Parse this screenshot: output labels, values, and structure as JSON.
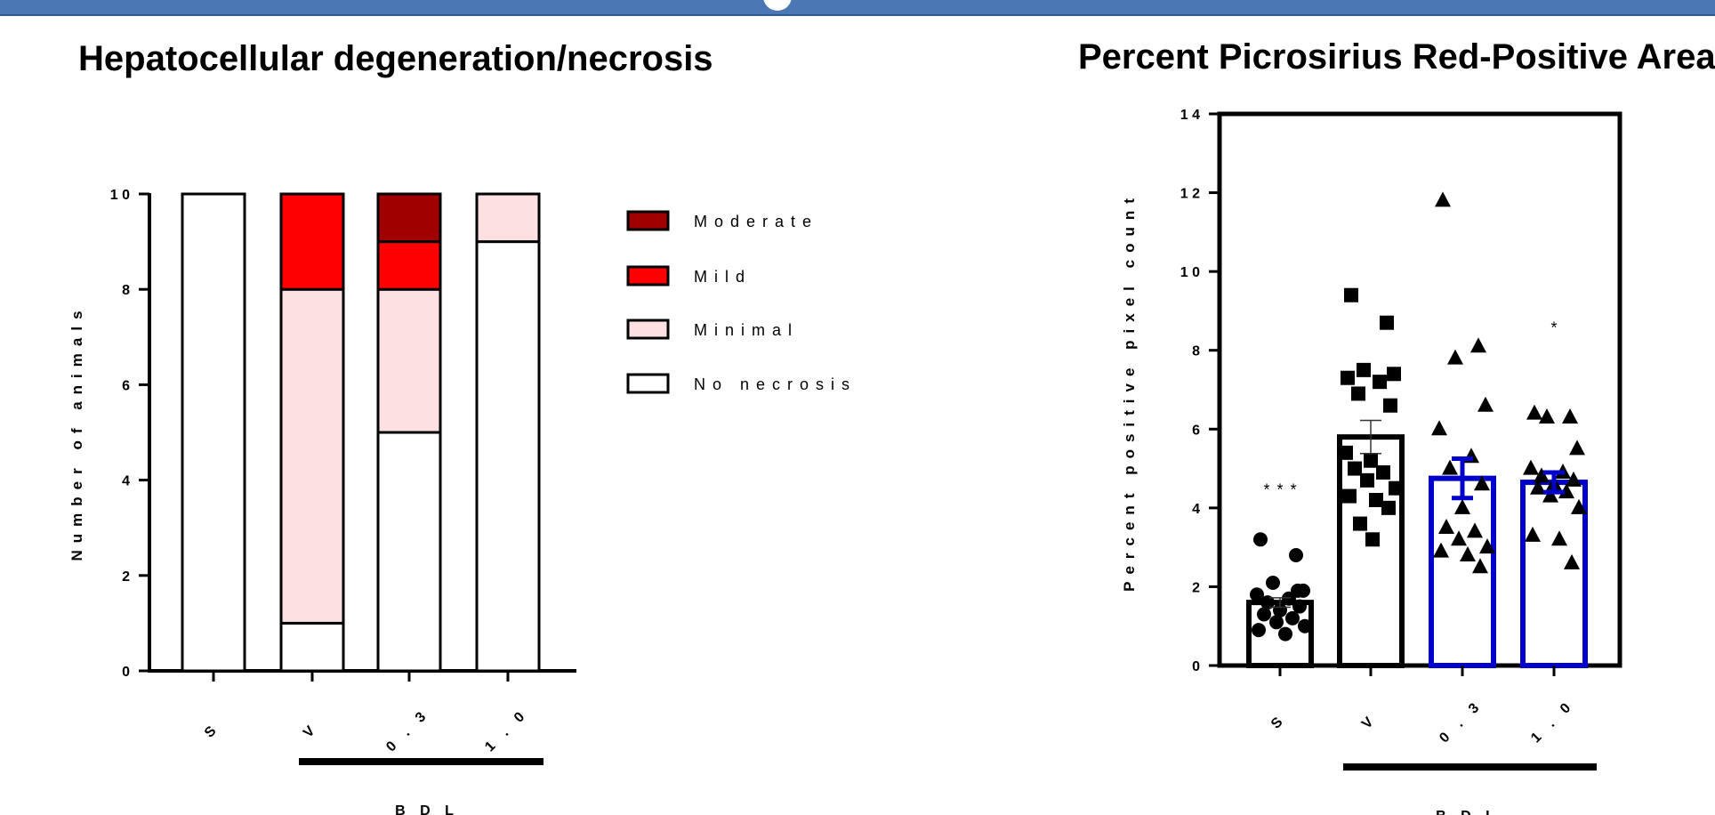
{
  "header": {
    "bar_color": "#4a78b5"
  },
  "chart_data": [
    {
      "type": "bar",
      "stacked": true,
      "title": "Hepatocellular degeneration/necrosis",
      "ylabel": "Number of animals",
      "xlabel": "BDL",
      "ylim": [
        0,
        10
      ],
      "yticks": [
        "0",
        "2",
        "4",
        "6",
        "8",
        "10"
      ],
      "categories": [
        "S",
        "V",
        "0.3",
        "1.0"
      ],
      "group_label": "BDL",
      "series": [
        {
          "name": "No necrosis",
          "color": "#ffffff",
          "values": [
            10,
            1,
            5,
            9
          ]
        },
        {
          "name": "Minimal",
          "color": "#fde0e2",
          "values": [
            0,
            7,
            3,
            1
          ]
        },
        {
          "name": "Mild",
          "color": "#ff0000",
          "values": [
            0,
            2,
            1,
            0
          ]
        },
        {
          "name": "Moderate",
          "color": "#a00000",
          "values": [
            0,
            0,
            1,
            0
          ]
        }
      ],
      "legend": {
        "placement": "right",
        "entries": [
          "Moderate",
          "Mild",
          "Minimal",
          "No necrosis"
        ]
      }
    },
    {
      "type": "bar",
      "title": "Percent Picrosirius Red-Positive Area",
      "ylabel": "Percent positive pixel count",
      "xlabel": "BDL",
      "ylim": [
        0,
        14
      ],
      "yticks": [
        "0",
        "2",
        "4",
        "6",
        "8",
        "10",
        "12",
        "14"
      ],
      "categories": [
        "S",
        "V",
        "0.3",
        "1.0"
      ],
      "group_label": "BDL",
      "series": [
        {
          "values": [
            1.6,
            5.8,
            4.75,
            4.65
          ],
          "errors": [
            0.12,
            0.42,
            0.5,
            0.25
          ],
          "bar_colors": [
            "#000000",
            "#000000",
            "#0000cc",
            "#0000cc"
          ],
          "markers": [
            "circle",
            "square",
            "triangle",
            "triangle"
          ],
          "points": [
            [
              3.2,
              2.8,
              2.1,
              1.9,
              1.8,
              1.7,
              1.6,
              1.5,
              1.4,
              1.3,
              1.2,
              1.1,
              1.0,
              0.9,
              0.8,
              1.9
            ],
            [
              9.4,
              8.7,
              7.5,
              7.4,
              7.3,
              7.2,
              6.9,
              6.6,
              5.2,
              5.0,
              4.9,
              4.7,
              4.5,
              4.3,
              4.2,
              4.0,
              3.6,
              3.2,
              5.4
            ],
            [
              11.8,
              8.1,
              7.8,
              6.6,
              6.0,
              5.3,
              5.0,
              4.6,
              4.0,
              3.5,
              3.4,
              3.2,
              3.0,
              2.9,
              2.8,
              2.5
            ],
            [
              6.4,
              6.3,
              6.3,
              5.5,
              5.0,
              4.9,
              4.8,
              4.7,
              4.6,
              4.5,
              4.4,
              4.3,
              4.0,
              3.3,
              3.2,
              2.6
            ]
          ]
        }
      ],
      "significance": [
        "***",
        "",
        "",
        "*"
      ]
    }
  ]
}
